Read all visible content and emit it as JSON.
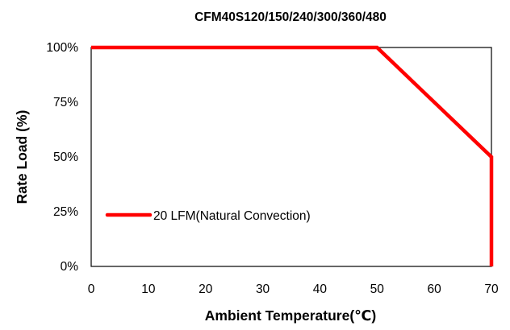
{
  "chart_data": {
    "type": "line",
    "title": "CFM40S120/150/240/300/360/480",
    "xlabel": "Ambient Temperature(℃)",
    "ylabel": "Rate Load (%)",
    "xlim": [
      0,
      70
    ],
    "ylim": [
      0,
      100
    ],
    "x_ticks": [
      "0",
      "10",
      "20",
      "30",
      "40",
      "50",
      "60",
      "70"
    ],
    "y_ticks": [
      "0%",
      "25%",
      "50%",
      "75%",
      "100%"
    ],
    "grid": false,
    "legend_position": "lower-left",
    "series": [
      {
        "name": "20 LFM(Natural Convection)",
        "color": "#ff0000",
        "x": [
          0,
          50,
          70,
          70
        ],
        "y": [
          100,
          100,
          50,
          0
        ]
      }
    ]
  }
}
